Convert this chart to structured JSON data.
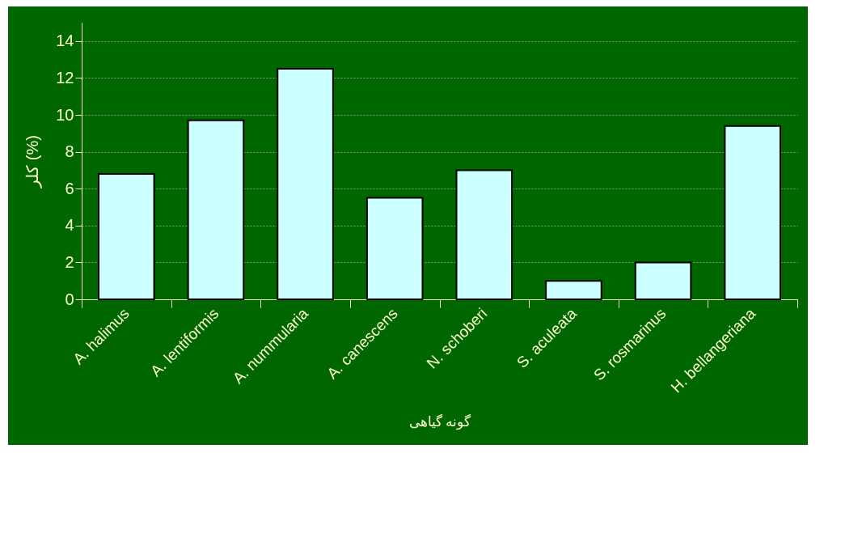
{
  "chart_data": {
    "type": "bar",
    "xlabel": "گونه گیاهی",
    "ylabel": "کلر (%)",
    "categories": [
      "A. halimus",
      "A. lentiformis",
      "A. nummularia",
      "A. canescens",
      "N. schoberi",
      "S. aculeata",
      "S. rosmarinus",
      "H. bellangeriana"
    ],
    "values": [
      6.8,
      9.7,
      12.5,
      5.5,
      7.0,
      1.0,
      2.0,
      9.4
    ],
    "color": "#ccffff",
    "ylim": [
      0,
      15
    ],
    "yticks": [
      0,
      2,
      4,
      6,
      8,
      10,
      12,
      14
    ],
    "grid": "y"
  }
}
